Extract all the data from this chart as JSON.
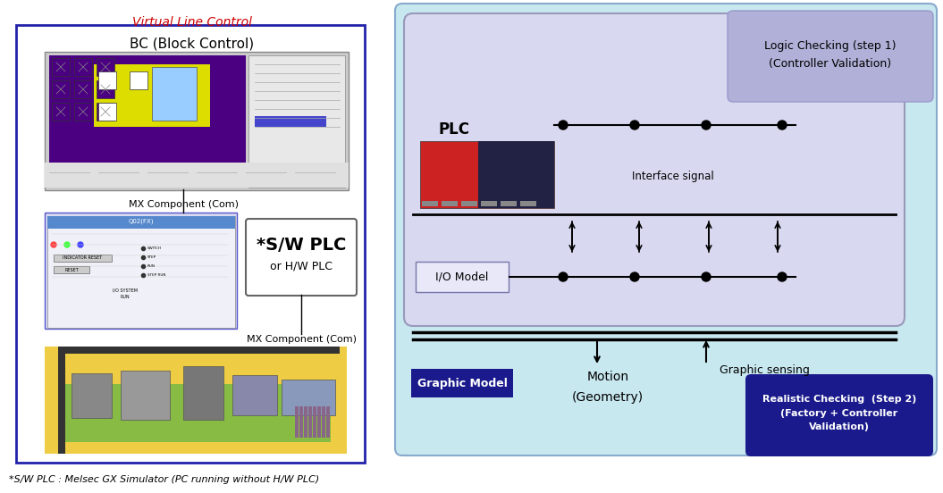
{
  "title_left": "Virtual Line Control",
  "title_left_color": "#cc0000",
  "left_box_color": "#2222aa",
  "left_bc_title": "BC (Block Control)",
  "left_swplc_title": "*S/W PLC",
  "left_swplc_sub": "or H/W PLC",
  "mx_comp1": "MX Component (Com)",
  "mx_comp2": "MX Component (Com)",
  "plc_label": "PLC",
  "interface_signal": "Interface signal",
  "io_model_label": "I/O Model",
  "graphic_model_label": "Graphic Model",
  "motion_label": "Motion\n\n(Geometry)",
  "graphic_sensing_label": "Graphic sensing",
  "logic_checking_line1": "Logic Checking (step 1)",
  "logic_checking_line2": "(Controller Validation)",
  "realistic_checking_line1": "Realistic Checking  (Step 2)",
  "realistic_checking_line2": "(Factory + Controller",
  "realistic_checking_line3": "Validation)",
  "footnote": "*S/W PLC : Melsec GX Simulator (PC running without H/W PLC)",
  "bg_color": "#ffffff",
  "outer_bg_color": "#c8e8f0",
  "inner_bg_color": "#d8d8f0",
  "logic_box_color": "#b0b0d8",
  "realistic_box_color": "#1a1a8c",
  "graphic_model_box_color": "#1a1a8c",
  "io_model_box_color": "#d8d8f0"
}
